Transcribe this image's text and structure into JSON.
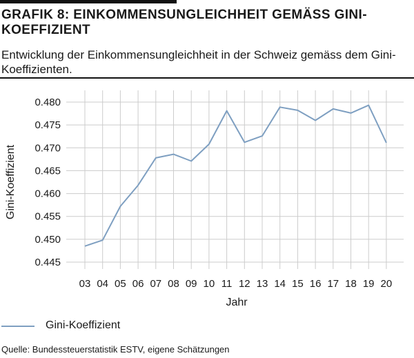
{
  "header": {
    "title": "GRAFIK 8: EINKOMMENSUNGLEICHHEIT GEMÄSS GINI-KOEFFIZIENT",
    "subtitle": "Entwicklung der Einkommensungleichheit in der Schweiz gemäss dem Gini-Koeffizienten."
  },
  "footer": {
    "source": "Quelle: Bundessteuerstatistik ESTV, eigene Schätzungen"
  },
  "colors": {
    "series": "#7e9fc1",
    "grid": "#cccccc"
  },
  "chart_data": {
    "type": "line",
    "title": "GRAFIK 8: EINKOMMENSUNGLEICHHEIT GEMÄSS GINI-KOEFFIZIENT",
    "subtitle": "Entwicklung der Einkommensungleichheit in der Schweiz gemäss dem Gini-Koeffizienten.",
    "xlabel": "Jahr",
    "ylabel": "Gini-Koeffizient",
    "categories": [
      "03",
      "04",
      "05",
      "06",
      "07",
      "08",
      "09",
      "10",
      "11",
      "12",
      "13",
      "14",
      "15",
      "16",
      "17",
      "18",
      "19",
      "20"
    ],
    "yticks": [
      "0.445",
      "0.450",
      "0.455",
      "0.460",
      "0.465",
      "0.470",
      "0.475",
      "0.480"
    ],
    "ylim": [
      0.445,
      0.481
    ],
    "grid": true,
    "legend": "bottom-left",
    "series": [
      {
        "name": "Gini-Koeffizient",
        "values": [
          0.4485,
          0.4498,
          0.4572,
          0.4618,
          0.4678,
          0.4686,
          0.4671,
          0.4708,
          0.4781,
          0.4712,
          0.4726,
          0.4789,
          0.4782,
          0.476,
          0.4785,
          0.4776,
          0.4793,
          0.4711
        ]
      }
    ]
  }
}
